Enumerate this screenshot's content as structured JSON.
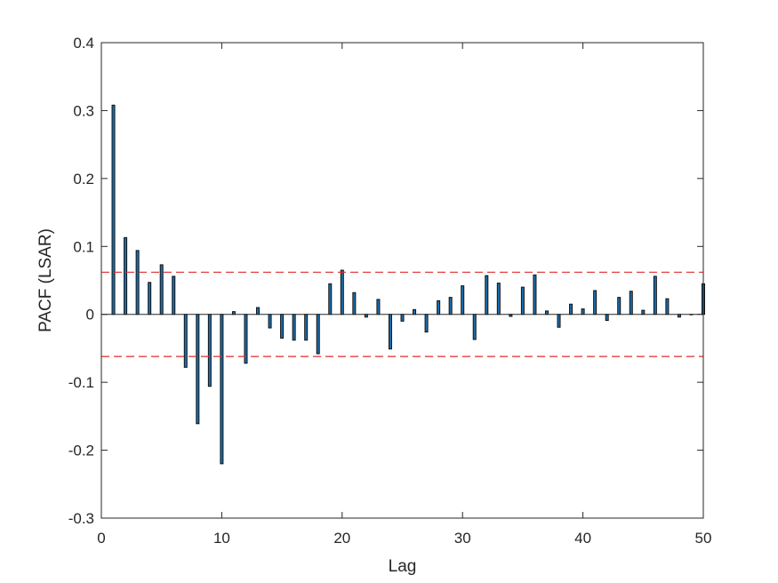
{
  "chart_data": {
    "type": "bar",
    "xlabel": "Lag",
    "ylabel": "PACF (LSAR)",
    "xlim": [
      0,
      50
    ],
    "ylim": [
      -0.3,
      0.4
    ],
    "xticks": [
      0,
      10,
      20,
      30,
      40,
      50
    ],
    "xtick_labels": [
      "0",
      "10",
      "20",
      "30",
      "40",
      "50"
    ],
    "yticks": [
      -0.3,
      -0.2,
      -0.1,
      0,
      0.1,
      0.2,
      0.3,
      0.4
    ],
    "ytick_labels": [
      "-0.3",
      "-0.2",
      "-0.1",
      "0",
      "0.1",
      "0.2",
      "0.3",
      "0.4"
    ],
    "grid": false,
    "confidence_bounds": [
      0.062,
      -0.062
    ],
    "lags": [
      1,
      2,
      3,
      4,
      5,
      6,
      7,
      8,
      9,
      10,
      11,
      12,
      13,
      14,
      15,
      16,
      17,
      18,
      19,
      20,
      21,
      22,
      23,
      24,
      25,
      26,
      27,
      28,
      29,
      30,
      31,
      32,
      33,
      34,
      35,
      36,
      37,
      38,
      39,
      40,
      41,
      42,
      43,
      44,
      45,
      46,
      47,
      48,
      49,
      50
    ],
    "values": [
      0.308,
      0.113,
      0.094,
      0.047,
      0.073,
      0.056,
      -0.078,
      -0.161,
      -0.106,
      -0.22,
      0.004,
      -0.072,
      0.01,
      -0.02,
      -0.035,
      -0.038,
      -0.038,
      -0.058,
      0.045,
      0.065,
      0.032,
      -0.004,
      0.022,
      -0.051,
      -0.01,
      0.007,
      -0.026,
      0.02,
      0.025,
      0.042,
      -0.037,
      0.057,
      0.046,
      -0.003,
      0.04,
      0.058,
      0.005,
      -0.019,
      0.015,
      0.008,
      0.035,
      -0.009,
      0.025,
      0.034,
      0.006,
      0.056,
      0.023,
      -0.004,
      0.0,
      0.045
    ],
    "colors": {
      "bar": "#1a6fb0",
      "bar_edge": "#111111",
      "bounds": "#e02b2b"
    }
  }
}
